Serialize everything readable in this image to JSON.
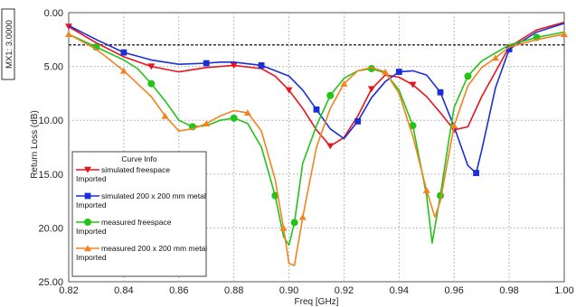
{
  "chart_data": {
    "type": "line",
    "xlabel": "Freq [GHz]",
    "ylabel": "Return Loss (dB)",
    "xlim": [
      0.82,
      1.0
    ],
    "ylim": [
      0.0,
      25.0
    ],
    "y_inverted": true,
    "x_ticks": [
      "0.82",
      "0.84",
      "0.86",
      "0.88",
      "0.90",
      "0.92",
      "0.94",
      "0.96",
      "0.98",
      "1.00"
    ],
    "y_ticks": [
      "0.00",
      "5.00",
      "10.00",
      "15.00",
      "20.00",
      "25.00"
    ],
    "grid": true,
    "legend": {
      "title": "Curve Info",
      "placement": "bottom-left",
      "entries": [
        {
          "name": "simulated freespace",
          "sub": "Imported"
        },
        {
          "name": "simulated 200 x 200 mm metal",
          "sub": "Imported"
        },
        {
          "name": "measured freespace",
          "sub": "Imported"
        },
        {
          "name": "measured 200 x 200 mm metal",
          "sub": "Imported"
        }
      ]
    },
    "marker_line": {
      "label": "MX1: 3.0000",
      "y": 3.0
    },
    "series": [
      {
        "name": "simulated freespace",
        "color": "#e8141b",
        "marker": "triangle-down",
        "x": [
          0.82,
          0.83,
          0.84,
          0.85,
          0.86,
          0.87,
          0.88,
          0.89,
          0.895,
          0.9,
          0.905,
          0.91,
          0.915,
          0.92,
          0.925,
          0.93,
          0.935,
          0.94,
          0.945,
          0.95,
          0.955,
          0.96,
          0.965,
          0.97,
          0.98,
          0.99,
          1.0
        ],
        "y": [
          1.3,
          2.8,
          4.1,
          5.0,
          5.5,
          5.1,
          4.9,
          5.2,
          5.9,
          7.2,
          8.9,
          10.9,
          12.4,
          11.6,
          9.6,
          7.1,
          5.8,
          6.0,
          6.7,
          7.8,
          9.3,
          10.9,
          10.6,
          7.8,
          3.2,
          1.6,
          0.9
        ]
      },
      {
        "name": "simulated 200 x 200 mm metal",
        "color": "#1a2fd6",
        "marker": "square",
        "x": [
          0.82,
          0.83,
          0.84,
          0.85,
          0.86,
          0.87,
          0.875,
          0.88,
          0.89,
          0.9,
          0.905,
          0.91,
          0.915,
          0.92,
          0.925,
          0.93,
          0.935,
          0.94,
          0.945,
          0.95,
          0.955,
          0.96,
          0.965,
          0.968,
          0.97,
          0.975,
          0.98,
          0.99,
          1.0
        ],
        "y": [
          1.2,
          2.5,
          3.7,
          4.4,
          4.8,
          4.7,
          4.6,
          4.6,
          4.9,
          5.9,
          7.2,
          9.0,
          10.8,
          11.7,
          10.1,
          7.9,
          6.4,
          5.5,
          5.4,
          5.8,
          7.4,
          10.6,
          14.2,
          14.9,
          12.8,
          7.0,
          3.4,
          1.8,
          1.0
        ]
      },
      {
        "name": "measured freespace",
        "color": "#22c41a",
        "marker": "circle",
        "x": [
          0.82,
          0.83,
          0.84,
          0.845,
          0.85,
          0.855,
          0.86,
          0.865,
          0.87,
          0.875,
          0.88,
          0.885,
          0.89,
          0.895,
          0.898,
          0.9,
          0.902,
          0.905,
          0.91,
          0.915,
          0.92,
          0.925,
          0.93,
          0.935,
          0.94,
          0.945,
          0.95,
          0.952,
          0.955,
          0.958,
          0.96,
          0.965,
          0.97,
          0.98,
          0.99,
          1.0
        ],
        "y": [
          2.0,
          3.2,
          4.4,
          5.2,
          6.6,
          8.2,
          10.0,
          10.6,
          10.5,
          10.0,
          9.8,
          10.3,
          12.5,
          17.0,
          20.8,
          21.6,
          19.5,
          14.0,
          10.5,
          7.7,
          6.1,
          5.4,
          5.2,
          5.6,
          7.2,
          10.5,
          17.0,
          21.4,
          17.0,
          12.0,
          8.8,
          5.9,
          4.5,
          3.0,
          2.3,
          1.8
        ]
      },
      {
        "name": "measured 200 x 200 mm metal",
        "color": "#f58220",
        "marker": "triangle-up",
        "x": [
          0.82,
          0.83,
          0.835,
          0.84,
          0.845,
          0.85,
          0.855,
          0.86,
          0.865,
          0.87,
          0.875,
          0.88,
          0.885,
          0.89,
          0.895,
          0.898,
          0.9,
          0.902,
          0.905,
          0.91,
          0.915,
          0.92,
          0.925,
          0.93,
          0.935,
          0.94,
          0.945,
          0.95,
          0.953,
          0.955,
          0.96,
          0.965,
          0.97,
          0.975,
          0.98,
          0.99,
          1.0
        ],
        "y": [
          2.0,
          3.4,
          4.4,
          5.4,
          6.6,
          7.8,
          9.6,
          11.0,
          10.8,
          10.3,
          9.6,
          9.1,
          9.3,
          11.0,
          15.5,
          20.0,
          23.3,
          23.5,
          19.0,
          12.5,
          8.9,
          6.6,
          5.4,
          5.1,
          5.5,
          7.5,
          11.5,
          16.5,
          19.0,
          17.5,
          10.5,
          6.8,
          5.1,
          4.2,
          3.2,
          2.5,
          2.0
        ]
      }
    ]
  }
}
